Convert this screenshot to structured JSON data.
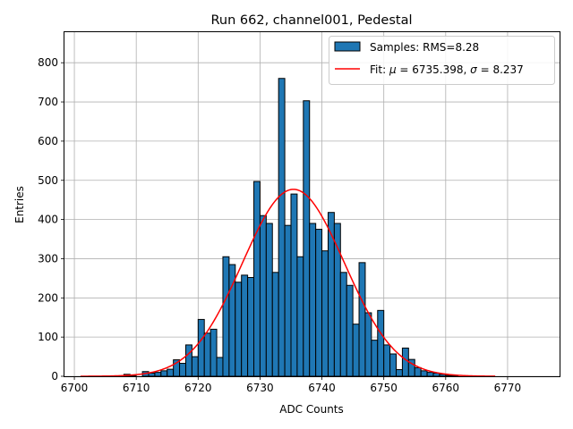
{
  "chart_data": {
    "type": "bar",
    "title": "Run 662, channel001, Pedestal",
    "xlabel": "ADC Counts",
    "ylabel": "Entries",
    "xlim": [
      6698.4,
      6778.4
    ],
    "ylim": [
      0,
      878
    ],
    "grid": true,
    "legend_placement": "top-right",
    "bin_width": 1,
    "xticks": [
      6700,
      6710,
      6720,
      6730,
      6740,
      6750,
      6760,
      6770
    ],
    "yticks": [
      0,
      100,
      200,
      300,
      400,
      500,
      600,
      700,
      800
    ],
    "colors": {
      "bars": "#1f77b4",
      "bar_edge": "#000000",
      "fit": "#ff0000",
      "grid": "#b0b0b0"
    },
    "series": [
      {
        "name": "Samples: RMS=8.28",
        "kind": "histogram",
        "bins": [
          {
            "x": 6701,
            "value": 0
          },
          {
            "x": 6702,
            "value": 0
          },
          {
            "x": 6703,
            "value": 0
          },
          {
            "x": 6704,
            "value": 0
          },
          {
            "x": 6705,
            "value": 0
          },
          {
            "x": 6706,
            "value": 0
          },
          {
            "x": 6707,
            "value": 1
          },
          {
            "x": 6708,
            "value": 5
          },
          {
            "x": 6709,
            "value": 1
          },
          {
            "x": 6710,
            "value": 0
          },
          {
            "x": 6711,
            "value": 12
          },
          {
            "x": 6712,
            "value": 8
          },
          {
            "x": 6713,
            "value": 10
          },
          {
            "x": 6714,
            "value": 14
          },
          {
            "x": 6715,
            "value": 18
          },
          {
            "x": 6716,
            "value": 42
          },
          {
            "x": 6717,
            "value": 33
          },
          {
            "x": 6718,
            "value": 80
          },
          {
            "x": 6719,
            "value": 50
          },
          {
            "x": 6720,
            "value": 145
          },
          {
            "x": 6721,
            "value": 110
          },
          {
            "x": 6722,
            "value": 120
          },
          {
            "x": 6723,
            "value": 48
          },
          {
            "x": 6724,
            "value": 305
          },
          {
            "x": 6725,
            "value": 285
          },
          {
            "x": 6726,
            "value": 240
          },
          {
            "x": 6727,
            "value": 258
          },
          {
            "x": 6728,
            "value": 252
          },
          {
            "x": 6729,
            "value": 497
          },
          {
            "x": 6730,
            "value": 410
          },
          {
            "x": 6731,
            "value": 390
          },
          {
            "x": 6732,
            "value": 265
          },
          {
            "x": 6733,
            "value": 760
          },
          {
            "x": 6734,
            "value": 385
          },
          {
            "x": 6735,
            "value": 465
          },
          {
            "x": 6736,
            "value": 305
          },
          {
            "x": 6737,
            "value": 703
          },
          {
            "x": 6738,
            "value": 390
          },
          {
            "x": 6739,
            "value": 375
          },
          {
            "x": 6740,
            "value": 320
          },
          {
            "x": 6741,
            "value": 418
          },
          {
            "x": 6742,
            "value": 390
          },
          {
            "x": 6743,
            "value": 265
          },
          {
            "x": 6744,
            "value": 232
          },
          {
            "x": 6745,
            "value": 133
          },
          {
            "x": 6746,
            "value": 290
          },
          {
            "x": 6747,
            "value": 162
          },
          {
            "x": 6748,
            "value": 92
          },
          {
            "x": 6749,
            "value": 168
          },
          {
            "x": 6750,
            "value": 80
          },
          {
            "x": 6751,
            "value": 57
          },
          {
            "x": 6752,
            "value": 17
          },
          {
            "x": 6753,
            "value": 72
          },
          {
            "x": 6754,
            "value": 43
          },
          {
            "x": 6755,
            "value": 22
          },
          {
            "x": 6756,
            "value": 14
          },
          {
            "x": 6757,
            "value": 10
          },
          {
            "x": 6758,
            "value": 8
          },
          {
            "x": 6759,
            "value": 5
          },
          {
            "x": 6760,
            "value": 2
          },
          {
            "x": 6761,
            "value": 1
          },
          {
            "x": 6762,
            "value": 0
          },
          {
            "x": 6763,
            "value": 0
          },
          {
            "x": 6764,
            "value": 0
          },
          {
            "x": 6765,
            "value": 0
          },
          {
            "x": 6766,
            "value": 0
          },
          {
            "x": 6767,
            "value": 0
          },
          {
            "x": 6768,
            "value": 0
          },
          {
            "x": 6769,
            "value": 0
          },
          {
            "x": 6770,
            "value": 0
          },
          {
            "x": 6771,
            "value": 0
          },
          {
            "x": 6772,
            "value": 0
          },
          {
            "x": 6773,
            "value": 0
          },
          {
            "x": 6774,
            "value": 0
          },
          {
            "x": 6775,
            "value": 0
          }
        ]
      },
      {
        "name": "Fit: μ = 6735.398, σ = 8.237",
        "legend_prefix": "Fit: ",
        "legend_mu_symbol": "μ",
        "legend_mu_text": " = 6735.398, ",
        "legend_sigma_symbol": "σ",
        "legend_sigma_text": " = 8.237",
        "kind": "gaussian-fit",
        "mu": 6735.398,
        "sigma": 8.237,
        "amplitude": 477,
        "x_range": [
          6701,
          6768
        ]
      }
    ]
  }
}
